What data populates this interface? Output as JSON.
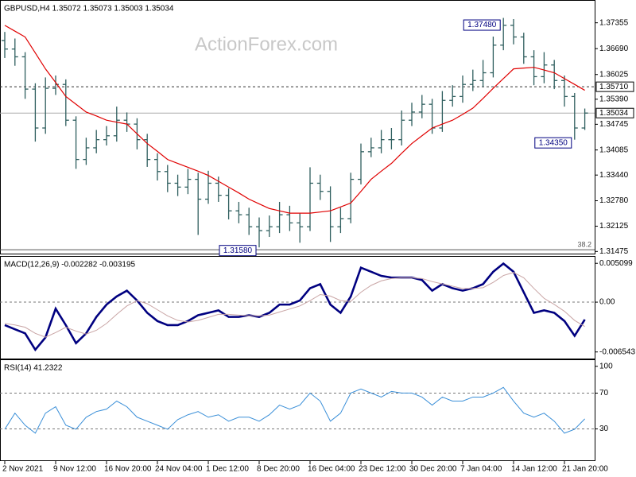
{
  "chart_data": [
    {
      "type": "ohlc",
      "title": "GBPUSD,H4  1.35072 1.35073 1.35003 1.35034",
      "watermark": "ActionForex.com",
      "color": "#2e5e5e",
      "categories": [
        "2 Nov 2021",
        null,
        null,
        null,
        null,
        "9 Nov 12:00",
        null,
        null,
        null,
        null,
        "16 Nov 20:00",
        null,
        null,
        null,
        null,
        "24 Nov 04:00",
        null,
        null,
        null,
        null,
        "1 Dec 12:00",
        null,
        null,
        null,
        null,
        "8 Dec 20:00",
        null,
        null,
        null,
        null,
        "16 Dec 04:00",
        null,
        null,
        null,
        null,
        "23 Dec 12:00",
        null,
        null,
        null,
        null,
        "30 Dec 20:00",
        null,
        null,
        null,
        null,
        "7 Jan 04:00",
        null,
        null,
        null,
        null,
        "14 Jan 12:00",
        null,
        null,
        null,
        null,
        "21 Jan 20:00",
        null,
        null
      ],
      "open": [
        1.369,
        1.3668,
        1.3648,
        1.3565,
        1.3465,
        1.3567,
        1.3577,
        1.3485,
        1.3384,
        1.3414,
        1.3435,
        1.3445,
        1.3485,
        1.3475,
        1.3435,
        1.3384,
        1.3353,
        1.3323,
        1.3313,
        1.3333,
        1.3282,
        1.3323,
        1.3292,
        1.3252,
        1.3242,
        1.3211,
        1.3201,
        1.3211,
        1.3242,
        1.3221,
        1.3211,
        1.3323,
        1.3302,
        1.3211,
        1.3232,
        1.3333,
        1.3404,
        1.3414,
        1.3435,
        1.3435,
        1.3485,
        1.3506,
        1.3526,
        1.3465,
        1.3536,
        1.3546,
        1.3577,
        1.3587,
        1.3607,
        1.3678,
        1.3729,
        1.3699,
        1.3648,
        1.3597,
        1.3627,
        1.3587,
        1.3546,
        1.3465
      ],
      "high": [
        1.3712,
        1.3695,
        1.366,
        1.358,
        1.3595,
        1.36,
        1.359,
        1.3495,
        1.344,
        1.346,
        1.347,
        1.352,
        1.3505,
        1.349,
        1.345,
        1.34,
        1.337,
        1.3345,
        1.336,
        1.335,
        1.3355,
        1.334,
        1.331,
        1.3275,
        1.326,
        1.3235,
        1.324,
        1.3275,
        1.3265,
        1.3245,
        1.3364,
        1.3345,
        1.3315,
        1.326,
        1.335,
        1.3425,
        1.344,
        1.346,
        1.3465,
        1.351,
        1.353,
        1.355,
        1.354,
        1.356,
        1.3575,
        1.36,
        1.3615,
        1.364,
        1.37,
        1.3748,
        1.3745,
        1.371,
        1.3665,
        1.366,
        1.364,
        1.36,
        1.3555,
        1.3515
      ],
      "low": [
        1.3645,
        1.3625,
        1.354,
        1.343,
        1.345,
        1.355,
        1.347,
        1.336,
        1.337,
        1.34,
        1.342,
        1.343,
        1.3455,
        1.341,
        1.3365,
        1.333,
        1.33,
        1.329,
        1.3295,
        1.319,
        1.327,
        1.3275,
        1.323,
        1.322,
        1.319,
        1.3158,
        1.3185,
        1.3195,
        1.32,
        1.317,
        1.32,
        1.328,
        1.3172,
        1.3195,
        1.322,
        1.332,
        1.339,
        1.34,
        1.341,
        1.342,
        1.347,
        1.349,
        1.345,
        1.3455,
        1.352,
        1.353,
        1.356,
        1.357,
        1.3595,
        1.3665,
        1.368,
        1.363,
        1.3575,
        1.358,
        1.3565,
        1.352,
        1.3435,
        1.346
      ],
      "close": [
        1.3668,
        1.3648,
        1.3565,
        1.3465,
        1.3567,
        1.3577,
        1.3485,
        1.3384,
        1.3414,
        1.3435,
        1.3445,
        1.3485,
        1.3475,
        1.3435,
        1.3384,
        1.3353,
        1.3323,
        1.3313,
        1.3333,
        1.3282,
        1.3323,
        1.3292,
        1.3252,
        1.3242,
        1.3211,
        1.3201,
        1.3211,
        1.3242,
        1.3221,
        1.3211,
        1.3323,
        1.3302,
        1.3211,
        1.3232,
        1.3333,
        1.3404,
        1.3414,
        1.3435,
        1.3435,
        1.3485,
        1.3506,
        1.3526,
        1.3465,
        1.3536,
        1.3546,
        1.3577,
        1.3587,
        1.3607,
        1.3678,
        1.3729,
        1.3699,
        1.3648,
        1.3597,
        1.3627,
        1.3587,
        1.3546,
        1.3465,
        1.35034
      ],
      "ma": {
        "color": "#e00000",
        "values": [
          1.3729,
          1.3714,
          1.3699,
          1.3658,
          1.3617,
          1.3582,
          1.3546,
          1.3526,
          1.3506,
          1.3496,
          1.3485,
          1.348,
          1.3475,
          1.345,
          1.3425,
          1.3405,
          1.3384,
          1.3374,
          1.3364,
          1.3354,
          1.3343,
          1.3328,
          1.3313,
          1.3298,
          1.3282,
          1.327,
          1.3258,
          1.3252,
          1.3246,
          1.3246,
          1.3246,
          1.3249,
          1.3252,
          1.3262,
          1.3272,
          1.3302,
          1.3333,
          1.3354,
          1.3374,
          1.34,
          1.3425,
          1.3445,
          1.3465,
          1.3475,
          1.3485,
          1.35,
          1.3516,
          1.3541,
          1.3567,
          1.3592,
          1.3617,
          1.3619,
          1.3621,
          1.3614,
          1.3607,
          1.3592,
          1.3577,
          1.3562
        ]
      },
      "ylim": [
        1.314,
        1.379
      ],
      "yticks": [
        1.37355,
        {
          "value": 1.3669,
          "label": "1.36690"
        },
        1.36025,
        {
          "value": 1.3539,
          "label": "1.35390"
        },
        1.34745,
        1.34085,
        {
          "value": 1.3344,
          "label": "1.33440"
        },
        {
          "value": 1.3278,
          "label": "1.32780"
        },
        1.32125,
        1.31475
      ],
      "levels": [
        {
          "value": 1.3571,
          "label": "1.35710",
          "style": "dashed"
        },
        {
          "value": 1.35034,
          "label": "1.35034",
          "style": "solid"
        }
      ],
      "annotations": [
        {
          "value": 1.3748,
          "label": "1.37480"
        },
        {
          "value": 1.3435,
          "label": "1.34350"
        },
        {
          "value": 1.3158,
          "label": "1.31580"
        }
      ],
      "fib": {
        "value": 1.3152,
        "label": "38.2"
      }
    },
    {
      "type": "line",
      "title": "MACD(12,26,9) -0.002282 -0.003195",
      "series": [
        {
          "color": "#000080",
          "width": 2.6,
          "values": [
            -0.00302,
            -0.00356,
            -0.0041,
            -0.00625,
            -0.00464,
            -0.00086,
            -0.00302,
            -0.00539,
            -0.0041,
            -0.00194,
            -0.00032,
            0.00075,
            0.00151,
            0.00022,
            -0.0014,
            -0.00248,
            -0.00302,
            -0.00302,
            -0.00248,
            -0.00172,
            -0.0014,
            -0.00108,
            -0.00194,
            -0.00194,
            -0.00172,
            -0.00194,
            -0.0014,
            -0.00032,
            -0.00032,
            0.00022,
            0.00183,
            0.00237,
            -0.00032,
            -0.0014,
            0.00075,
            0.00453,
            0.00399,
            0.00345,
            0.00323,
            0.00323,
            0.00323,
            0.00291,
            0.00151,
            0.00237,
            0.00183,
            0.00151,
            0.00183,
            0.00237,
            0.00399,
            0.00507,
            0.00399,
            0.00129,
            -0.0014,
            -0.00108,
            -0.0014,
            -0.00248,
            -0.00442,
            -0.002282
          ]
        },
        {
          "color": "#c9a5a5",
          "width": 1,
          "values": [
            -0.0028,
            -0.003,
            -0.0033,
            -0.0041,
            -0.0046,
            -0.004,
            -0.0033,
            -0.0038,
            -0.0042,
            -0.0037,
            -0.0028,
            -0.0016,
            -0.0005,
            0.0002,
            -0.0002,
            -0.001,
            -0.0018,
            -0.0024,
            -0.0026,
            -0.0024,
            -0.002,
            -0.0016,
            -0.0016,
            -0.0017,
            -0.0018,
            -0.0018,
            -0.0017,
            -0.0013,
            -0.0009,
            -0.0005,
            0.0002,
            0.001,
            0.0008,
            0.0002,
            0.0001,
            0.0013,
            0.0022,
            0.0028,
            0.0031,
            0.0032,
            0.0032,
            0.0031,
            0.0027,
            0.0024,
            0.0021,
            0.0018,
            0.0018,
            0.0019,
            0.0026,
            0.0035,
            0.0039,
            0.0032,
            0.0018,
            0.0005,
            -0.0003,
            -0.0012,
            -0.0024,
            -0.003195
          ]
        }
      ],
      "ylim": [
        -0.007513,
        0.005854
      ],
      "yticks": [
        0.005099,
        {
          "value": 0,
          "label": "0.00"
        },
        -0.006543
      ],
      "levels": [
        0
      ]
    },
    {
      "type": "line",
      "title": "RSI(14) 41.2322",
      "series": [
        {
          "color": "#3a8fd8",
          "width": 1,
          "values": [
            29.6,
            47.6,
            34.1,
            25.2,
            47.6,
            54.8,
            34.1,
            29.6,
            43.1,
            49.4,
            52.1,
            61.1,
            54.8,
            43.1,
            38.6,
            34.1,
            29.6,
            40.4,
            45.8,
            49.4,
            43.1,
            45.8,
            38.6,
            43.1,
            43.1,
            38.6,
            45.8,
            56.6,
            52.1,
            56.6,
            70.1,
            61.1,
            38.6,
            47.6,
            70.1,
            74.6,
            70.1,
            65.6,
            71.9,
            70.1,
            70.1,
            65.6,
            56.6,
            65.6,
            61.1,
            61.1,
            65.6,
            65.6,
            70.1,
            76.4,
            61.1,
            47.6,
            43.1,
            47.6,
            38.6,
            25.2,
            29.6,
            41.2322
          ]
        }
      ],
      "ylim": [
        -6,
        106
      ],
      "yticks": [
        100,
        70,
        30
      ],
      "levels": [
        70,
        30
      ]
    }
  ]
}
